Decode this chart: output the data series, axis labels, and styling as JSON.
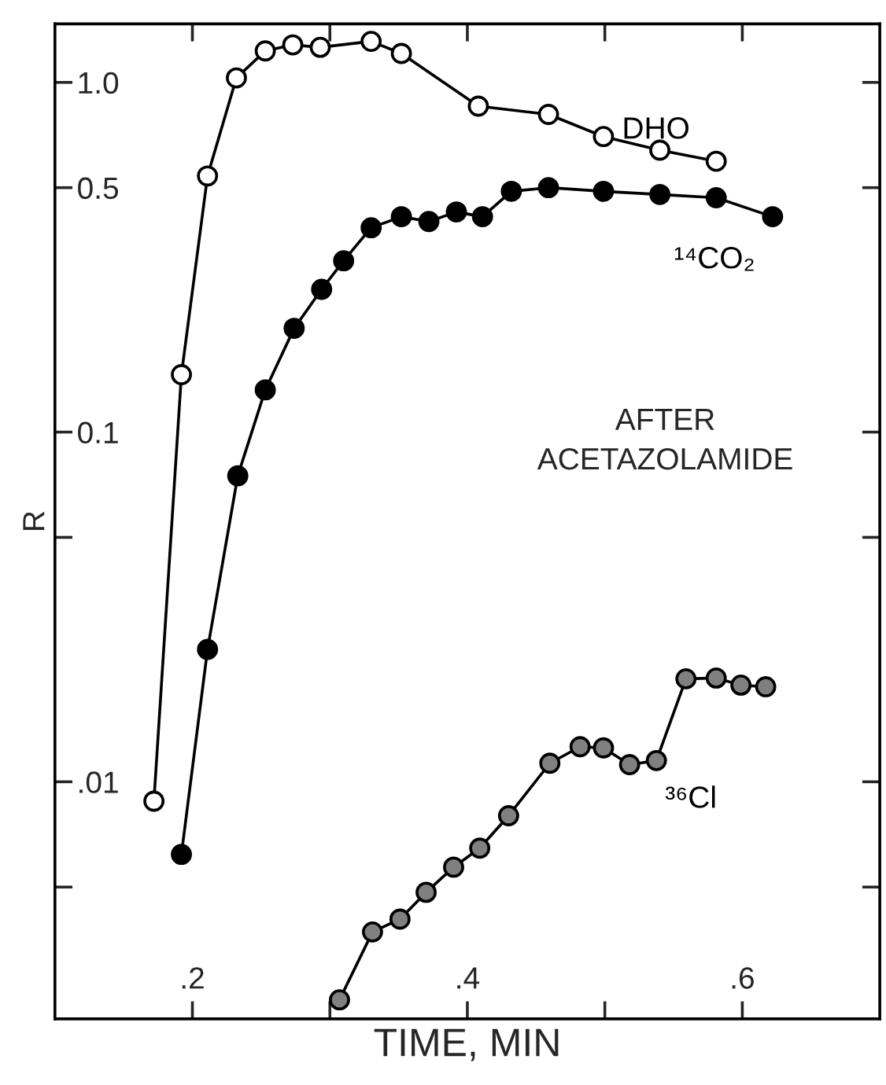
{
  "chart_data": {
    "type": "line",
    "xlabel": "TIME, MIN",
    "ylabel": "R",
    "log": "y",
    "marker": "circle",
    "line_style": "solid",
    "grid": false,
    "legend": false,
    "xlim": [
      0.1,
      0.7
    ],
    "xticks": [
      {
        "value": 0.2,
        "label": ".2"
      },
      {
        "value": 0.3,
        "label": null
      },
      {
        "value": 0.4,
        "label": ".4"
      },
      {
        "value": 0.5,
        "label": null
      },
      {
        "value": 0.6,
        "label": ".6"
      }
    ],
    "ylim": [
      0.0021,
      1.47
    ],
    "yticks": [
      {
        "value": 0.005,
        "label": null
      },
      {
        "value": 0.01,
        "label": ".01"
      },
      {
        "value": 0.05,
        "label": null
      },
      {
        "value": 0.1,
        "label": "0.1"
      },
      {
        "value": 0.5,
        "label": "0.5"
      },
      {
        "value": 1.0,
        "label": "1.0"
      }
    ],
    "annotations": [
      "AFTER\nACETAZOLAMIDE"
    ],
    "series": [
      {
        "name": "DHO",
        "color": "#000000",
        "x": [
          0.172,
          0.192,
          0.211,
          0.232,
          0.253,
          0.273,
          0.293,
          0.33,
          0.352,
          0.408,
          0.459,
          0.499,
          0.54,
          0.581
        ],
        "values": [
          0.0088,
          0.146,
          0.54,
          1.03,
          1.23,
          1.28,
          1.26,
          1.31,
          1.21,
          0.855,
          0.81,
          0.7,
          0.64,
          0.595
        ]
      },
      {
        "name": "¹⁴CO₂",
        "color": "#000000",
        "x": [
          0.192,
          0.211,
          0.233,
          0.253,
          0.274,
          0.294,
          0.31,
          0.33,
          0.352,
          0.372,
          0.392,
          0.411,
          0.432,
          0.459,
          0.499,
          0.54,
          0.581,
          0.622
        ],
        "values": [
          0.0062,
          0.0239,
          0.075,
          0.132,
          0.198,
          0.256,
          0.309,
          0.384,
          0.413,
          0.4,
          0.426,
          0.413,
          0.488,
          0.5,
          0.488,
          0.478,
          0.468,
          0.413
        ]
      },
      {
        "name": "³⁶Cl",
        "color": "#000000",
        "x": [
          0.307,
          0.331,
          0.351,
          0.37,
          0.39,
          0.409,
          0.43,
          0.46,
          0.482,
          0.499,
          0.518,
          0.5375,
          0.559,
          0.581,
          0.599,
          0.617
        ],
        "values": [
          0.00238,
          0.00372,
          0.00405,
          0.00483,
          0.0057,
          0.00646,
          0.008,
          0.0113,
          0.0126,
          0.0125,
          0.0112,
          0.0115,
          0.0197,
          0.0198,
          0.0189,
          0.0187
        ]
      }
    ]
  }
}
